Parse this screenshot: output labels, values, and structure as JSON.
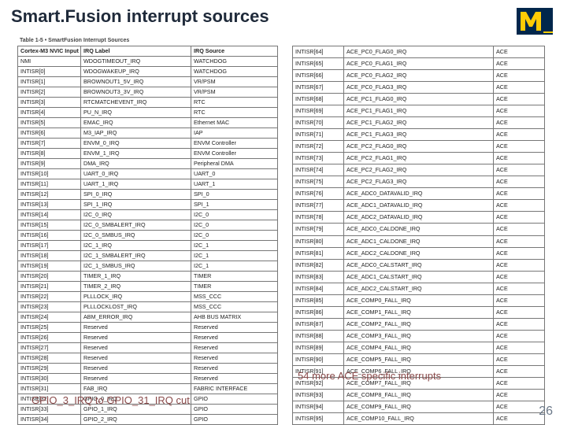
{
  "title": "Smart.Fusion interrupt sources",
  "page_number": "26",
  "table_caption": "Table 1-5 •  SmartFusion Interrupt Sources",
  "notes": {
    "gpio_cut": "GPIO_3_IRQ to GPIO_31_IRQ cut",
    "ace_more": "54 more ACE specific interrupts"
  },
  "left_headers": [
    "Cortex-M3 NVIC Input",
    "IRQ Label",
    "IRQ Source"
  ],
  "right_headers": [
    "",
    "",
    ""
  ],
  "left_rows": [
    [
      "NMI",
      "WDOGTIMEOUT_IRQ",
      "WATCHDOG"
    ],
    [
      "INTISR[0]",
      "WDOGWAKEUP_IRQ",
      "WATCHDOG"
    ],
    [
      "INTISR[1]",
      "BROWNOUT1_5V_IRQ",
      "VR/PSM"
    ],
    [
      "INTISR[2]",
      "BROWNOUT3_3V_IRQ",
      "VR/PSM"
    ],
    [
      "INTISR[3]",
      "RTCMATCHEVENT_IRQ",
      "RTC"
    ],
    [
      "INTISR[4]",
      "PU_N_IRQ",
      "RTC"
    ],
    [
      "INTISR[5]",
      "EMAC_IRQ",
      "Ethernet MAC"
    ],
    [
      "INTISR[6]",
      "M3_IAP_IRQ",
      "IAP"
    ],
    [
      "INTISR[7]",
      "ENVM_0_IRQ",
      "ENVM Controller"
    ],
    [
      "INTISR[8]",
      "ENVM_1_IRQ",
      "ENVM Controller"
    ],
    [
      "INTISR[9]",
      "DMA_IRQ",
      "Peripheral DMA"
    ],
    [
      "INTISR[10]",
      "UART_0_IRQ",
      "UART_0"
    ],
    [
      "INTISR[11]",
      "UART_1_IRQ",
      "UART_1"
    ],
    [
      "INTISR[12]",
      "SPI_0_IRQ",
      "SPI_0"
    ],
    [
      "INTISR[13]",
      "SPI_1_IRQ",
      "SPI_1"
    ],
    [
      "INTISR[14]",
      "I2C_0_IRQ",
      "I2C_0"
    ],
    [
      "INTISR[15]",
      "I2C_0_SMBALERT_IRQ",
      "I2C_0"
    ],
    [
      "INTISR[16]",
      "I2C_0_SMBUS_IRQ",
      "I2C_0"
    ],
    [
      "INTISR[17]",
      "I2C_1_IRQ",
      "I2C_1"
    ],
    [
      "INTISR[18]",
      "I2C_1_SMBALERT_IRQ",
      "I2C_1"
    ],
    [
      "INTISR[19]",
      "I2C_1_SMBUS_IRQ",
      "I2C_1"
    ],
    [
      "INTISR[20]",
      "TIMER_1_IRQ",
      "TIMER"
    ],
    [
      "INTISR[21]",
      "TIMER_2_IRQ",
      "TIMER"
    ],
    [
      "INTISR[22]",
      "PLLLOCK_IRQ",
      "MSS_CCC"
    ],
    [
      "INTISR[23]",
      "PLLLOCKLOST_IRQ",
      "MSS_CCC"
    ],
    [
      "INTISR[24]",
      "ABM_ERROR_IRQ",
      "AHB BUS MATRIX"
    ],
    [
      "INTISR[25]",
      "Reserved",
      "Reserved"
    ],
    [
      "INTISR[26]",
      "Reserved",
      "Reserved"
    ],
    [
      "INTISR[27]",
      "Reserved",
      "Reserved"
    ],
    [
      "INTISR[28]",
      "Reserved",
      "Reserved"
    ],
    [
      "INTISR[29]",
      "Reserved",
      "Reserved"
    ],
    [
      "INTISR[30]",
      "Reserved",
      "Reserved"
    ],
    [
      "INTISR[31]",
      "FAB_IRQ",
      "FABRIC INTERFACE"
    ],
    [
      "INTISR[32]",
      "GPIO_0_IRQ",
      "GPIO"
    ],
    [
      "INTISR[33]",
      "GPIO_1_IRQ",
      "GPIO"
    ],
    [
      "INTISR[34]",
      "GPIO_2_IRQ",
      "GPIO"
    ]
  ],
  "right_rows": [
    [
      "INTISR[64]",
      "ACE_PC0_FLAG0_IRQ",
      "ACE"
    ],
    [
      "INTISR[65]",
      "ACE_PC0_FLAG1_IRQ",
      "ACE"
    ],
    [
      "INTISR[66]",
      "ACE_PC0_FLAG2_IRQ",
      "ACE"
    ],
    [
      "INTISR[67]",
      "ACE_PC0_FLAG3_IRQ",
      "ACE"
    ],
    [
      "INTISR[68]",
      "ACE_PC1_FLAG0_IRQ",
      "ACE"
    ],
    [
      "INTISR[69]",
      "ACE_PC1_FLAG1_IRQ",
      "ACE"
    ],
    [
      "INTISR[70]",
      "ACE_PC1_FLAG2_IRQ",
      "ACE"
    ],
    [
      "INTISR[71]",
      "ACE_PC1_FLAG3_IRQ",
      "ACE"
    ],
    [
      "INTISR[72]",
      "ACE_PC2_FLAG0_IRQ",
      "ACE"
    ],
    [
      "INTISR[73]",
      "ACE_PC2_FLAG1_IRQ",
      "ACE"
    ],
    [
      "INTISR[74]",
      "ACE_PC2_FLAG2_IRQ",
      "ACE"
    ],
    [
      "INTISR[75]",
      "ACE_PC2_FLAG3_IRQ",
      "ACE"
    ],
    [
      "INTISR[76]",
      "ACE_ADC0_DATAVALID_IRQ",
      "ACE"
    ],
    [
      "INTISR[77]",
      "ACE_ADC1_DATAVALID_IRQ",
      "ACE"
    ],
    [
      "INTISR[78]",
      "ACE_ADC2_DATAVALID_IRQ",
      "ACE"
    ],
    [
      "INTISR[79]",
      "ACE_ADC0_CALDONE_IRQ",
      "ACE"
    ],
    [
      "INTISR[80]",
      "ACE_ADC1_CALDONE_IRQ",
      "ACE"
    ],
    [
      "INTISR[81]",
      "ACE_ADC2_CALDONE_IRQ",
      "ACE"
    ],
    [
      "INTISR[82]",
      "ACE_ADC0_CALSTART_IRQ",
      "ACE"
    ],
    [
      "INTISR[83]",
      "ACE_ADC1_CALSTART_IRQ",
      "ACE"
    ],
    [
      "INTISR[84]",
      "ACE_ADC2_CALSTART_IRQ",
      "ACE"
    ],
    [
      "INTISR[85]",
      "ACE_COMP0_FALL_IRQ",
      "ACE"
    ],
    [
      "INTISR[86]",
      "ACE_COMP1_FALL_IRQ",
      "ACE"
    ],
    [
      "INTISR[87]",
      "ACE_COMP2_FALL_IRQ",
      "ACE"
    ],
    [
      "INTISR[88]",
      "ACE_COMP3_FALL_IRQ",
      "ACE"
    ],
    [
      "INTISR[89]",
      "ACE_COMP4_FALL_IRQ",
      "ACE"
    ],
    [
      "INTISR[90]",
      "ACE_COMP5_FALL_IRQ",
      "ACE"
    ],
    [
      "INTISR[91]",
      "ACE_COMP6_FALL_IRQ",
      "ACE"
    ],
    [
      "INTISR[92]",
      "ACE_COMP7_FALL_IRQ",
      "ACE"
    ],
    [
      "INTISR[93]",
      "ACE_COMP8_FALL_IRQ",
      "ACE"
    ],
    [
      "INTISR[94]",
      "ACE_COMP9_FALL_IRQ",
      "ACE"
    ],
    [
      "INTISR[95]",
      "ACE_COMP10_FALL_IRQ",
      "ACE"
    ]
  ],
  "colors": {
    "title": "#1f2a3a",
    "logo_maize": "#ffcb05",
    "logo_blue": "#00274c",
    "note": "#8a4a4a",
    "pagenum": "#6a7888"
  }
}
